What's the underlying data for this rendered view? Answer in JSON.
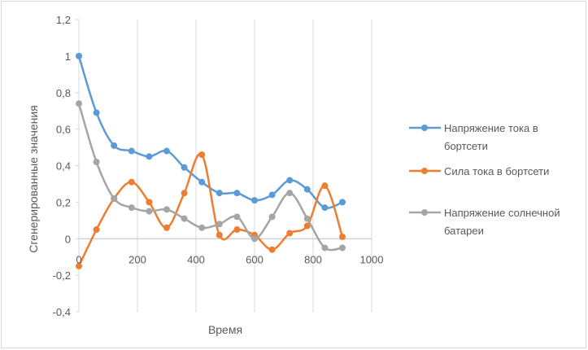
{
  "chart_data": {
    "type": "line",
    "title": "",
    "xlabel": "Время",
    "ylabel": "Сгенерированные значения",
    "xlim": [
      0,
      1000
    ],
    "ylim": [
      -0.4,
      1.2
    ],
    "x_ticks": [
      "0",
      "200",
      "400",
      "600",
      "800",
      "1000"
    ],
    "y_ticks": [
      "-0,4",
      "-0,2",
      "0",
      "0,2",
      "0,4",
      "0,6",
      "0,8",
      "1",
      "1,2"
    ],
    "grid": "vertical",
    "legend": "right",
    "x": [
      0,
      60,
      120,
      180,
      240,
      300,
      360,
      420,
      480,
      540,
      600,
      660,
      720,
      780,
      840,
      900
    ],
    "series": [
      {
        "name": "Напряжение тока в бортсети",
        "color": "#5b9bd5",
        "values": [
          1.0,
          0.69,
          0.51,
          0.48,
          0.45,
          0.48,
          0.39,
          0.31,
          0.25,
          0.25,
          0.21,
          0.24,
          0.32,
          0.27,
          0.17,
          0.2
        ]
      },
      {
        "name": "Сила тока в бортсети",
        "color": "#ed7d31",
        "values": [
          -0.15,
          0.05,
          0.22,
          0.31,
          0.2,
          0.06,
          0.25,
          0.46,
          0.02,
          0.05,
          0.02,
          -0.06,
          0.03,
          0.07,
          0.29,
          0.01
        ]
      },
      {
        "name": "Напряжение солнечной батареи",
        "color": "#a5a5a5",
        "values": [
          0.74,
          0.42,
          0.22,
          0.17,
          0.15,
          0.16,
          0.11,
          0.06,
          0.08,
          0.12,
          0.0,
          0.12,
          0.25,
          0.11,
          -0.05,
          -0.05
        ]
      }
    ]
  },
  "legend_items": [
    {
      "line1": "Напряжение тока в",
      "line2": "бортсети"
    },
    {
      "line1": "Сила тока в бортсети",
      "line2": ""
    },
    {
      "line1": "Напряжение солнечной",
      "line2": "батареи"
    }
  ]
}
